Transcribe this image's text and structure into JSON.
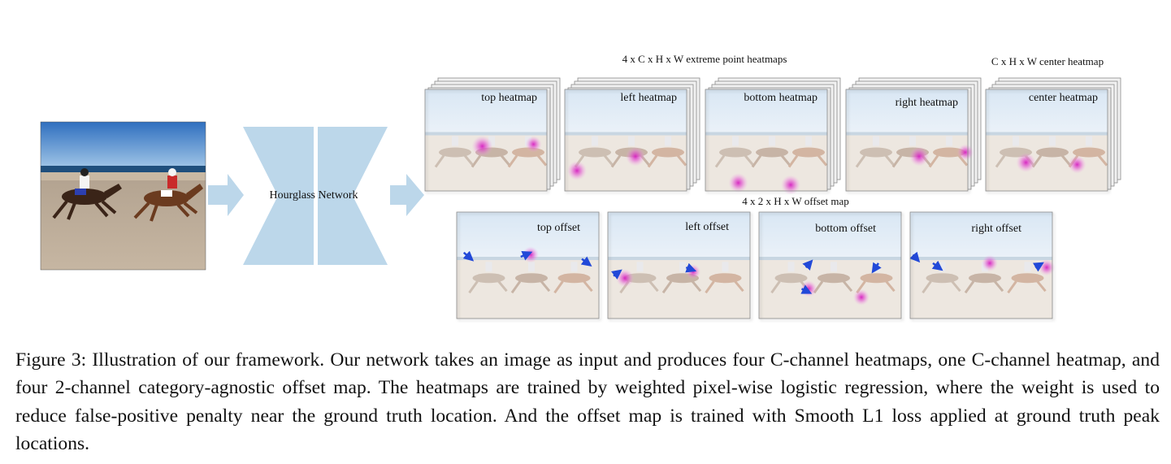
{
  "figure": {
    "network_label": "Hourglass Network",
    "extreme_title": "4 x C x H x W extreme point heatmaps",
    "center_title": "C x H x W center heatmap",
    "offset_title": "4 x 2 x H x W offset map",
    "heatmaps": [
      {
        "label": "top heatmap"
      },
      {
        "label": "left heatmap"
      },
      {
        "label": "bottom heatmap"
      },
      {
        "label": "right heatmap"
      },
      {
        "label": "center heatmap"
      }
    ],
    "offsets": [
      {
        "label": "top offset"
      },
      {
        "label": "left offset"
      },
      {
        "label": "bottom offset"
      },
      {
        "label": "right offset"
      }
    ],
    "colors": {
      "arrow": "#bcd7ea",
      "hourglass": "#bcd7ea",
      "sky": "#dfeaf5",
      "sand": "#ece6df",
      "heat": "#d61fc0",
      "offset_arrow": "#2249d8"
    }
  },
  "caption": "Figure 3: Illustration of our framework. Our network takes an image as input and produces four C-channel heatmaps, one C-channel heatmap, and four 2-channel category-agnostic offset map. The heatmaps are trained by weighted pixel-wise logistic regression, where the weight is used to reduce false-positive penalty near the ground truth location. And the offset map is trained with Smooth L1 loss applied at ground truth peak locations."
}
